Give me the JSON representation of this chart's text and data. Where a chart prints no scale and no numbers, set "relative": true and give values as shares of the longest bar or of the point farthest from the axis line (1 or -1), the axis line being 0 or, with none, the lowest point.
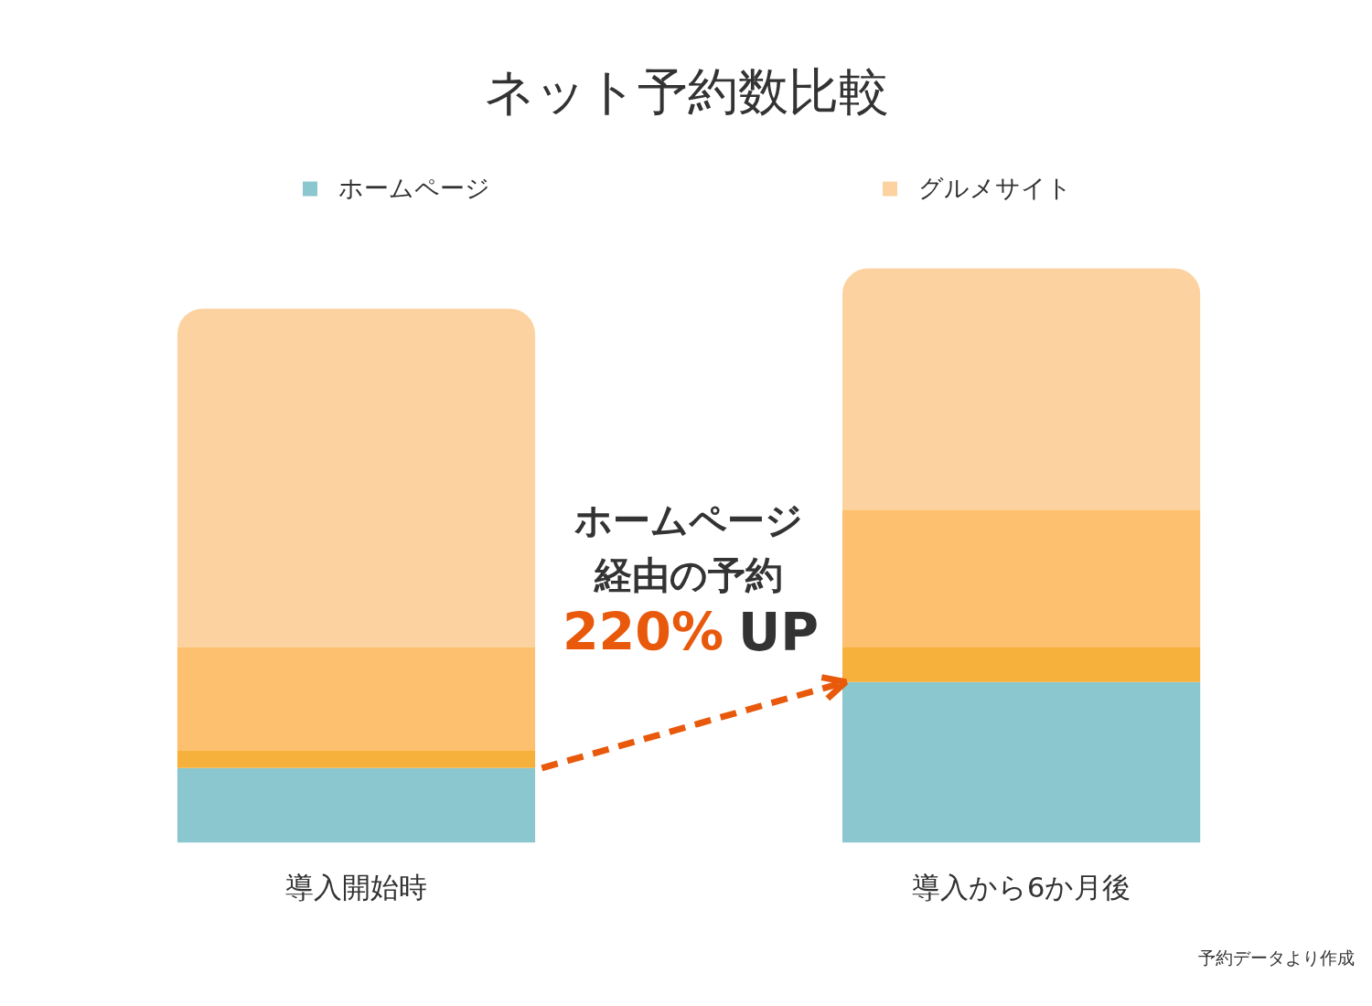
{
  "chart_data": {
    "type": "bar",
    "title": "ネット予約数比較",
    "categories": [
      "導入開始時",
      "導入から6か月後"
    ],
    "series": [
      {
        "name": "ホームページ",
        "color": "#8ac7cf",
        "values": [
          0.13,
          0.28
        ]
      },
      {
        "color": "#f6b03c",
        "values": [
          0.03,
          0.06
        ]
      },
      {
        "color": "#fdc06e",
        "values": [
          0.18,
          0.24
        ]
      },
      {
        "name": "グルメサイト",
        "color": "#fcd3a0",
        "values": [
          0.59,
          0.42
        ]
      }
    ],
    "stacked": true,
    "relative": true,
    "legend": "top",
    "annotations": [
      "ホームページ経由の予約",
      "220% UP",
      "予約データより作成"
    ]
  }
}
